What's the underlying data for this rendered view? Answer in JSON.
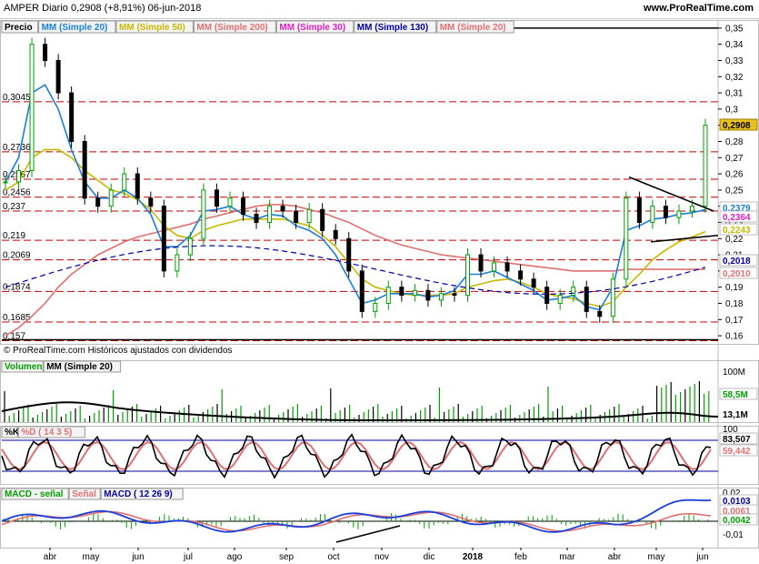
{
  "header": {
    "title": "AMPER  Diario  0,2908 (+8,91%)  06-jun-2018",
    "site": "www.ProRealTime.com"
  },
  "colors": {
    "price_up": "#00a000",
    "price_dn": "#000000",
    "sma20": "#1a7fd9",
    "sma50": "#c9b800",
    "sma200": "#e07070",
    "sma30": "#e020c0",
    "sma130": "#0000a0",
    "hline": "#c00000",
    "highlight": "#e8c020"
  },
  "price_panel": {
    "legend": [
      {
        "text": "Precio",
        "color": "#000000"
      },
      {
        "text": "MM (Simple 20)",
        "color": "#1a7fd9"
      },
      {
        "text": "MM (Simple 50)",
        "color": "#c9b800"
      },
      {
        "text": "MM (Simple 200)",
        "color": "#e07070"
      },
      {
        "text": "MM (Simple 30)",
        "color": "#e020c0"
      },
      {
        "text": "MM (Simple 130)",
        "color": "#0000a0"
      },
      {
        "text": "MM (Simple 20)",
        "color": "#e07070"
      }
    ],
    "footer": "© ProRealTime.com Históricos ajustados con dividendos",
    "left_levels": [
      "0,3045",
      "0,2736",
      "0,2567",
      "0,2456",
      "0,237",
      "0,219",
      "0,2069",
      "0,1874",
      "0,1685",
      "0,157"
    ],
    "right_badges": [
      {
        "text": "0,2908",
        "bg": "#e8c020",
        "fg": "#000000"
      },
      {
        "text": "0,2379",
        "bg": "#ffffff",
        "fg": "#1a7fd9"
      },
      {
        "text": "0,2364",
        "bg": "#ffffff",
        "fg": "#e020c0"
      },
      {
        "text": "0,2243",
        "bg": "#ffffff",
        "fg": "#c9b800"
      },
      {
        "text": "0,2018",
        "bg": "#ffffff",
        "fg": "#0000a0"
      },
      {
        "text": "0,2010",
        "bg": "#ffffff",
        "fg": "#e07070"
      }
    ]
  },
  "volume_panel": {
    "legend": [
      {
        "text": "Volumen",
        "color": "#00a000"
      },
      {
        "text": "MM (Simple 20)",
        "color": "#000000"
      }
    ],
    "ticks": [
      "100M",
      "58,5M",
      "13,1M"
    ]
  },
  "stoch_panel": {
    "legend": [
      {
        "text": "%K",
        "color": "#000000"
      },
      {
        "text": "%D ( 14 3 5)",
        "color": "#e07070"
      }
    ],
    "ticks": [
      "100",
      "83,507",
      "59,442"
    ]
  },
  "macd_panel": {
    "legend": [
      {
        "text": "MACD - señal",
        "color": "#00a000"
      },
      {
        "text": "Señal",
        "color": "#e07070"
      },
      {
        "text": "MACD ( 12 26 9)",
        "color": "#0000a0"
      }
    ],
    "ticks": [
      "0,02",
      "0,0103",
      "0,0061",
      "0,0042",
      "-0,01"
    ]
  },
  "chart_data": {
    "type": "line",
    "title": "AMPER Diario",
    "x_labels": [
      "abr",
      "may",
      "jun",
      "jul",
      "ago",
      "sep",
      "oct",
      "nov",
      "dic",
      "2018",
      "feb",
      "mar",
      "abr",
      "may",
      "jun"
    ],
    "y_ticks": [
      "0,35",
      "0,34",
      "0,33",
      "0,32",
      "0,31",
      "0,3",
      "0,29",
      "0,28",
      "0,27",
      "0,26",
      "0,25",
      "0,24",
      "0,23",
      "0,22",
      "0,21",
      "0,2",
      "0,19",
      "0,18",
      "0,17",
      "0,16"
    ],
    "ylim": [
      0.155,
      0.355
    ],
    "last_close": 0.2908,
    "change_pct": 8.91,
    "date": "06-jun-2018",
    "series": [
      {
        "name": "Precio",
        "values": [
          0.255,
          0.262,
          0.34,
          0.33,
          0.31,
          0.28,
          0.245,
          0.24,
          0.25,
          0.26,
          0.245,
          0.24,
          0.2,
          0.21,
          0.22,
          0.25,
          0.24,
          0.245,
          0.235,
          0.23,
          0.24,
          0.237,
          0.23,
          0.238,
          0.225,
          0.22,
          0.2,
          0.175,
          0.18,
          0.19,
          0.185,
          0.188,
          0.182,
          0.186,
          0.185,
          0.21,
          0.2,
          0.205,
          0.2,
          0.195,
          0.19,
          0.18,
          0.185,
          0.19,
          0.175,
          0.172,
          0.195,
          0.245,
          0.23,
          0.24,
          0.233,
          0.237,
          0.24,
          0.29
        ]
      },
      {
        "name": "MM (Simple 20)",
        "values": [
          0.255,
          0.27,
          0.31,
          0.315,
          0.3,
          0.275,
          0.255,
          0.245,
          0.245,
          0.25,
          0.245,
          0.235,
          0.215,
          0.215,
          0.222,
          0.237,
          0.238,
          0.24,
          0.235,
          0.232,
          0.235,
          0.234,
          0.228,
          0.225,
          0.22,
          0.21,
          0.195,
          0.18,
          0.182,
          0.186,
          0.186,
          0.186,
          0.184,
          0.185,
          0.188,
          0.198,
          0.198,
          0.2,
          0.196,
          0.192,
          0.188,
          0.182,
          0.183,
          0.185,
          0.178,
          0.176,
          0.19,
          0.225,
          0.228,
          0.232,
          0.233,
          0.235,
          0.236,
          0.2379
        ]
      },
      {
        "name": "MM (Simple 50)",
        "values": [
          0.25,
          0.255,
          0.27,
          0.275,
          0.275,
          0.27,
          0.262,
          0.256,
          0.25,
          0.248,
          0.244,
          0.238,
          0.228,
          0.222,
          0.22,
          0.225,
          0.228,
          0.23,
          0.232,
          0.232,
          0.232,
          0.232,
          0.23,
          0.228,
          0.222,
          0.215,
          0.205,
          0.195,
          0.19,
          0.188,
          0.186,
          0.185,
          0.185,
          0.185,
          0.186,
          0.19,
          0.192,
          0.194,
          0.195,
          0.193,
          0.19,
          0.186,
          0.184,
          0.183,
          0.18,
          0.178,
          0.181,
          0.19,
          0.198,
          0.207,
          0.213,
          0.218,
          0.221,
          0.2243
        ]
      },
      {
        "name": "MM (Simple 200)",
        "values": [
          0.16,
          0.165,
          0.172,
          0.18,
          0.19,
          0.198,
          0.204,
          0.21,
          0.214,
          0.218,
          0.221,
          0.223,
          0.225,
          0.227,
          0.229,
          0.232,
          0.234,
          0.236,
          0.238,
          0.24,
          0.241,
          0.241,
          0.24,
          0.238,
          0.236,
          0.233,
          0.23,
          0.226,
          0.222,
          0.219,
          0.216,
          0.214,
          0.212,
          0.21,
          0.209,
          0.208,
          0.207,
          0.206,
          0.205,
          0.204,
          0.203,
          0.202,
          0.201,
          0.2,
          0.2,
          0.2,
          0.2,
          0.201,
          0.201,
          0.201,
          0.201,
          0.201,
          0.201,
          0.201
        ]
      }
    ]
  }
}
